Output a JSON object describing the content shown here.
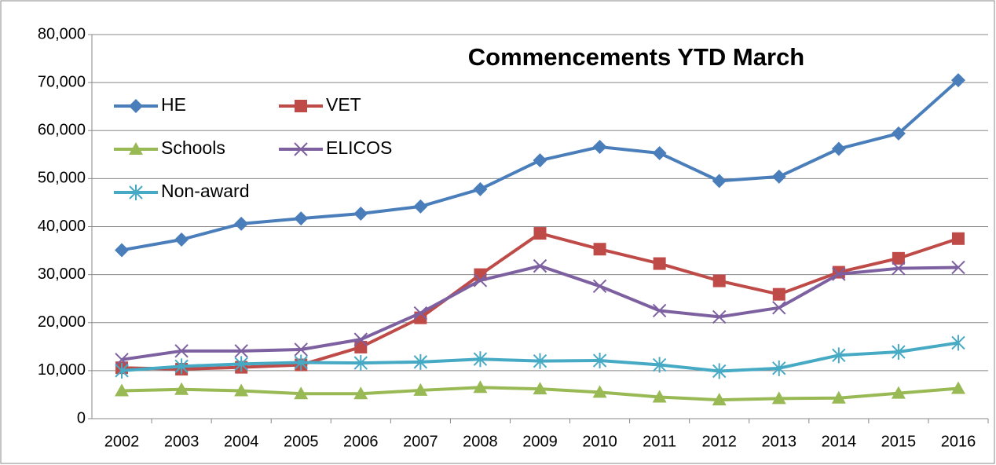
{
  "chart_data": {
    "type": "line",
    "title": "Commencements YTD March",
    "categories": [
      "2002",
      "2003",
      "2004",
      "2005",
      "2006",
      "2007",
      "2008",
      "2009",
      "2010",
      "2011",
      "2012",
      "2013",
      "2014",
      "2015",
      "2016"
    ],
    "series": [
      {
        "name": "HE",
        "color": "#4a7ebb",
        "marker": "diamond",
        "values": [
          35100,
          37300,
          40600,
          41700,
          42700,
          44200,
          47800,
          53800,
          56600,
          55300,
          49500,
          50400,
          56200,
          59400,
          70500
        ]
      },
      {
        "name": "VET",
        "color": "#be4b48",
        "marker": "square",
        "values": [
          10600,
          10300,
          10700,
          11200,
          14900,
          21000,
          30000,
          38600,
          35300,
          32300,
          28700,
          25900,
          30500,
          33400,
          37500
        ]
      },
      {
        "name": "Schools",
        "color": "#98b954",
        "marker": "triangle",
        "values": [
          5800,
          6100,
          5800,
          5200,
          5200,
          5900,
          6500,
          6200,
          5500,
          4500,
          3900,
          4200,
          4300,
          5300,
          6300
        ]
      },
      {
        "name": "ELICOS",
        "color": "#7d60a0",
        "marker": "x",
        "values": [
          12300,
          14100,
          14100,
          14400,
          16500,
          22000,
          28800,
          31800,
          27600,
          22500,
          21200,
          23100,
          30100,
          31300,
          31500
        ]
      },
      {
        "name": "Non-award",
        "color": "#46aac5",
        "marker": "star",
        "values": [
          10000,
          10900,
          11400,
          11700,
          11600,
          11800,
          12400,
          12000,
          12100,
          11200,
          9900,
          10500,
          13200,
          13900,
          15800
        ]
      }
    ],
    "ylim": [
      0,
      80000
    ],
    "yticks": [
      0,
      {
        "value": 10000,
        "label": "10,000"
      },
      {
        "value": 20000,
        "label": "20,000"
      },
      {
        "value": 30000,
        "label": "30,000"
      },
      {
        "value": 40000,
        "label": "40,000"
      },
      {
        "value": 50000,
        "label": "50,000"
      },
      {
        "value": 60000,
        "label": "60,000"
      },
      {
        "value": 70000,
        "label": "70,000"
      },
      {
        "value": 80000,
        "label": "80,000"
      }
    ],
    "grid": true,
    "legend": "upper left"
  }
}
